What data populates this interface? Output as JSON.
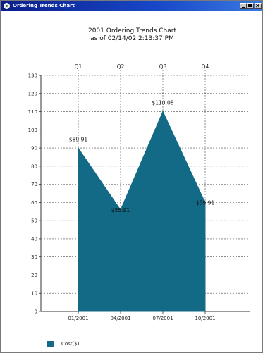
{
  "window": {
    "title": "Ordering Trends Chart"
  },
  "colors": {
    "series": "#136a87",
    "titlebar": "#0a1e8c"
  },
  "icons": {
    "app": "app-icon",
    "minimize": "minimize-icon",
    "maximize": "maximize-icon",
    "close": "close-icon"
  },
  "chart_data": {
    "type": "area",
    "title": "2001 Ordering Trends Chart",
    "subtitle": "as of 02/14/02 2:13:37 PM",
    "categories": [
      "01/2001",
      "04/2001",
      "07/2001",
      "10/2001"
    ],
    "top_categories": [
      "Q1",
      "Q2",
      "Q3",
      "Q4"
    ],
    "series": [
      {
        "name": "Cost($)",
        "values": [
          89.91,
          55.91,
          110.08,
          59.91
        ],
        "labels": [
          "$89.91",
          "$55.91",
          "$110.08",
          "$59.91"
        ]
      }
    ],
    "ylim": [
      0,
      130
    ],
    "yticks": [
      0,
      10,
      20,
      30,
      40,
      50,
      60,
      70,
      80,
      90,
      100,
      110,
      120,
      130
    ],
    "grid": true,
    "legend_position": "bottom-left"
  }
}
